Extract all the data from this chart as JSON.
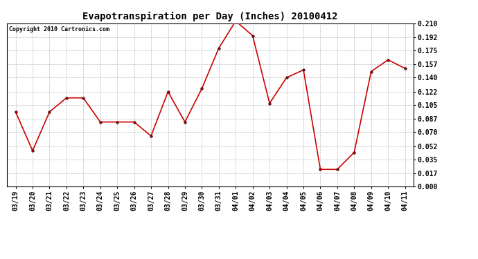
{
  "title": "Evapotranspiration per Day (Inches) 20100412",
  "copyright": "Copyright 2010 Cartronics.com",
  "dates": [
    "03/19",
    "03/20",
    "03/21",
    "03/22",
    "03/23",
    "03/24",
    "03/25",
    "03/26",
    "03/27",
    "03/28",
    "03/29",
    "03/30",
    "03/31",
    "04/01",
    "04/02",
    "04/03",
    "04/04",
    "04/05",
    "04/06",
    "04/07",
    "04/08",
    "04/09",
    "04/10",
    "04/11"
  ],
  "values": [
    0.096,
    0.046,
    0.096,
    0.114,
    0.114,
    0.083,
    0.083,
    0.083,
    0.065,
    0.122,
    0.083,
    0.126,
    0.178,
    0.213,
    0.194,
    0.107,
    0.14,
    0.15,
    0.022,
    0.022,
    0.044,
    0.148,
    0.163,
    0.152
  ],
  "line_color": "#cc0000",
  "marker": "o",
  "marker_size": 2.5,
  "line_width": 1.2,
  "background_color": "#ffffff",
  "plot_bg_color": "#ffffff",
  "grid_color": "#bbbbbb",
  "ylim": [
    0.0,
    0.21
  ],
  "yticks": [
    0.0,
    0.017,
    0.035,
    0.052,
    0.07,
    0.087,
    0.105,
    0.122,
    0.14,
    0.157,
    0.175,
    0.192,
    0.21
  ],
  "title_fontsize": 10,
  "copyright_fontsize": 6,
  "tick_fontsize": 7,
  "border_color": "#000000"
}
